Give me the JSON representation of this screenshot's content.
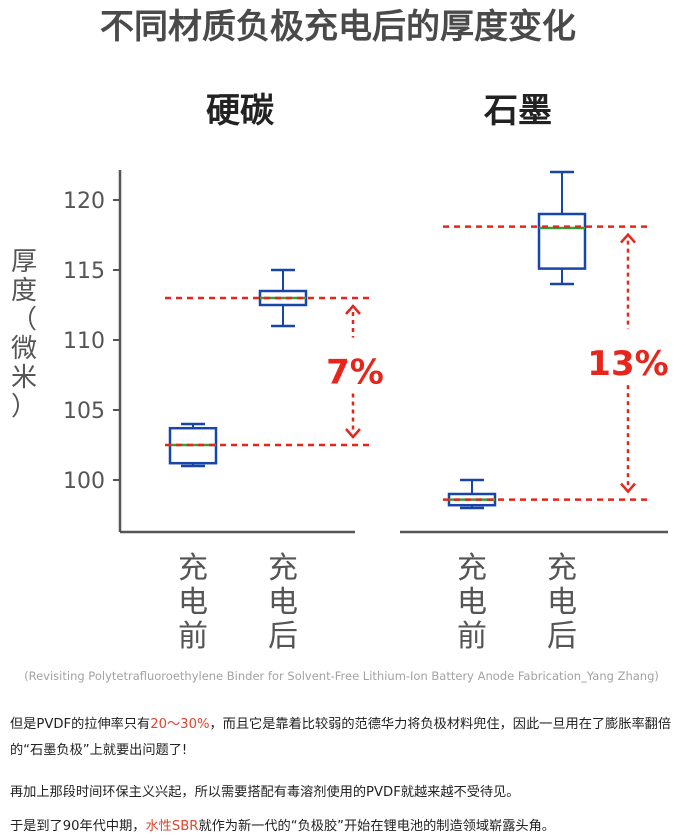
{
  "chart_data": {
    "type": "box",
    "title": "不同材质负极充电后的厚度变化",
    "ylabel": "厚度（微米）",
    "ylim": [
      97,
      122
    ],
    "yticks": [
      100,
      105,
      110,
      115,
      120
    ],
    "grid": false,
    "panels": [
      {
        "name": "硬碳",
        "categories": [
          "充电前",
          "充电后"
        ],
        "boxes": [
          {
            "category": "充电前",
            "min": 101,
            "q1": 101.2,
            "median": 102.5,
            "q3": 103.7,
            "max": 104
          },
          {
            "category": "充电后",
            "min": 111,
            "q1": 112.5,
            "median": 113,
            "q3": 113.5,
            "max": 115
          }
        ],
        "ref_lines": [
          102.5,
          113
        ],
        "annotation": "7%"
      },
      {
        "name": "石墨",
        "categories": [
          "充电前",
          "充电后"
        ],
        "boxes": [
          {
            "category": "充电前",
            "min": 98,
            "q1": 98.2,
            "median": 98.6,
            "q3": 99,
            "max": 100
          },
          {
            "category": "充电后",
            "min": 114,
            "q1": 115.1,
            "median": 118,
            "q3": 119,
            "max": 122
          }
        ],
        "ref_lines": [
          98.6,
          118.1
        ],
        "annotation": "13%"
      }
    ],
    "colors": {
      "box": "#1745a8",
      "median": "#3c9a3c",
      "ref": "#e8251b",
      "axis": "#555555",
      "title": "#4a4a4a"
    }
  },
  "caption": "(Revisiting Polytetrafluoroethylene Binder for Solvent-Free Lithium-Ion Battery Anode Fabrication_Yang Zhang)",
  "paragraphs": [
    {
      "segments": [
        {
          "text": "但是PVDF的拉伸率只有"
        },
        {
          "text": "20～30%",
          "highlight": true
        },
        {
          "text": "，而且它是靠着比较弱的范德华力将负极材料兜住，因此一旦用在了膨胀率翻倍的“石墨负极”上就要出问题了!"
        }
      ]
    },
    {
      "segments": [
        {
          "text": "再加上那段时间环保主义兴起，所以需要搭配有毒溶剂使用的PVDF就越来越不受待见。"
        }
      ]
    },
    {
      "segments": [
        {
          "text": "于是到了90年代中期，"
        },
        {
          "text": "水性SBR",
          "highlight": true
        },
        {
          "text": "就作为新一代的“负极胶”开始在锂电池的制造领域崭露头角。"
        }
      ]
    }
  ]
}
